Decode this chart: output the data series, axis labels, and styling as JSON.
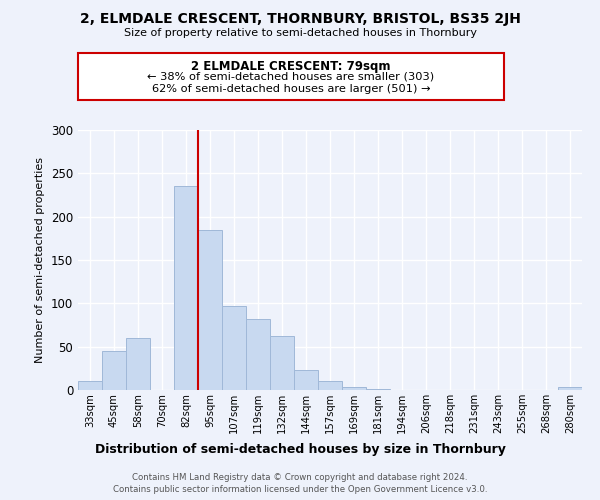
{
  "title": "2, ELMDALE CRESCENT, THORNBURY, BRISTOL, BS35 2JH",
  "subtitle": "Size of property relative to semi-detached houses in Thornbury",
  "bar_labels": [
    "33sqm",
    "45sqm",
    "58sqm",
    "70sqm",
    "82sqm",
    "95sqm",
    "107sqm",
    "119sqm",
    "132sqm",
    "144sqm",
    "157sqm",
    "169sqm",
    "181sqm",
    "194sqm",
    "206sqm",
    "218sqm",
    "231sqm",
    "243sqm",
    "255sqm",
    "268sqm",
    "280sqm"
  ],
  "bar_values": [
    10,
    45,
    60,
    0,
    235,
    185,
    97,
    82,
    62,
    23,
    10,
    3,
    1,
    0,
    0,
    0,
    0,
    0,
    0,
    0,
    3
  ],
  "bar_color": "#c8d9f0",
  "bar_edge_color": "#a0b8d8",
  "marker_index": 4,
  "marker_color": "#cc0000",
  "ylabel": "Number of semi-detached properties",
  "xlabel": "Distribution of semi-detached houses by size in Thornbury",
  "ylim": [
    0,
    300
  ],
  "yticks": [
    0,
    50,
    100,
    150,
    200,
    250,
    300
  ],
  "annotation_title": "2 ELMDALE CRESCENT: 79sqm",
  "annotation_line1": "← 38% of semi-detached houses are smaller (303)",
  "annotation_line2": "62% of semi-detached houses are larger (501) →",
  "annotation_box_color": "#ffffff",
  "annotation_box_edge": "#cc0000",
  "footer_line1": "Contains HM Land Registry data © Crown copyright and database right 2024.",
  "footer_line2": "Contains public sector information licensed under the Open Government Licence v3.0.",
  "background_color": "#eef2fb",
  "grid_color": "#ffffff"
}
